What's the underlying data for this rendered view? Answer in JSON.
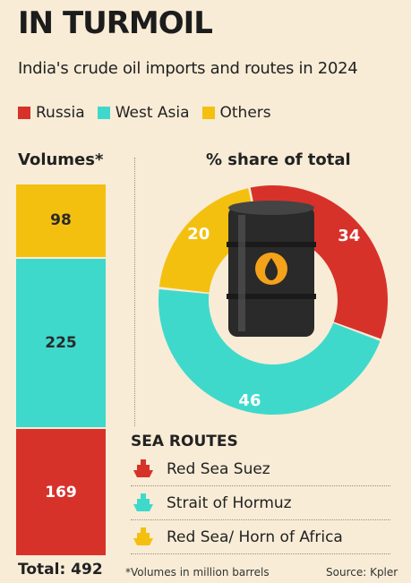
{
  "title": "IN TURMOIL",
  "subtitle": "India's crude oil imports and routes in 2024",
  "legend": [
    {
      "label": "Russia",
      "color": "#d7322a"
    },
    {
      "label": "West Asia",
      "color": "#3fd9cc"
    },
    {
      "label": "Others",
      "color": "#f4c010"
    }
  ],
  "volumes_title": "Volumes*",
  "share_title": "% share of total",
  "total_label": "Total: 492",
  "footnote": "*Volumes in million barrels",
  "source": "Source: Kpler",
  "sea_routes": {
    "title": "SEA ROUTES",
    "items": [
      {
        "label": "Red Sea Suez",
        "icon": "ship-icon",
        "color": "#d7322a"
      },
      {
        "label": "Strait of Hormuz",
        "icon": "ship-icon",
        "color": "#3fd9cc"
      },
      {
        "label": "Red Sea/ Horn of Africa",
        "icon": "ship-icon",
        "color": "#f4c010"
      }
    ]
  },
  "chart_data": [
    {
      "type": "bar",
      "title": "Volumes*",
      "categories": [
        "Others",
        "West Asia",
        "Russia"
      ],
      "values": [
        98,
        225,
        169
      ],
      "colors": [
        "#f4c010",
        "#3fd9cc",
        "#d7322a"
      ],
      "total": 492
    },
    {
      "type": "pie",
      "title": "% share of total",
      "categories": [
        "Russia",
        "West Asia",
        "Others"
      ],
      "values": [
        34,
        46,
        20
      ],
      "colors": [
        "#d7322a",
        "#3fd9cc",
        "#f4c010"
      ]
    }
  ]
}
